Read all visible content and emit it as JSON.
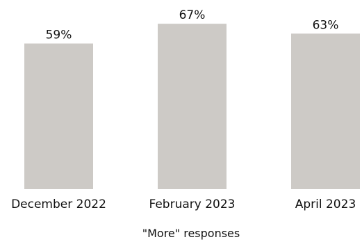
{
  "chart_data": {
    "type": "bar",
    "categories": [
      "December 2022",
      "February 2023",
      "April 2023"
    ],
    "values": [
      59,
      67,
      63
    ],
    "value_labels": [
      "59%",
      "67%",
      "63%"
    ],
    "xlabel": "\"More\" responses",
    "ylabel": "",
    "ylim": [
      0,
      100
    ],
    "grid": false,
    "bar_color": "#cdcac6"
  }
}
